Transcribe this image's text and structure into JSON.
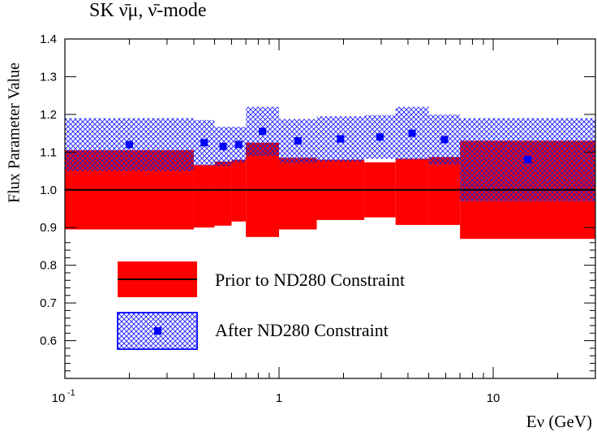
{
  "chart_data": {
    "type": "area",
    "title": "SK ν̄μ, ν̄-mode",
    "ylabel": "Flux Parameter Value",
    "xlabel": "Eν (GeV)",
    "x_scale": "log",
    "xlim": [
      0.1,
      30
    ],
    "ylim": [
      0.5,
      1.4
    ],
    "y_ticks": [
      "0.6",
      "0.7",
      "0.8",
      "0.9",
      "1.0",
      "1.1",
      "1.2",
      "1.3",
      "1.4"
    ],
    "x_ticks": [
      {
        "value": 0.1,
        "label": "10",
        "exp": "-1"
      },
      {
        "value": 1,
        "label": "1",
        "exp": ""
      },
      {
        "value": 10,
        "label": "10",
        "exp": ""
      }
    ],
    "reference_line": 1.0,
    "legend": [
      {
        "name": "Prior to ND280 Constraint",
        "style": "solid-red-band-with-line"
      },
      {
        "name": "After ND280 Constraint",
        "style": "blue-crosshatch-band-with-marker"
      }
    ],
    "series": [
      {
        "name": "Prior to ND280 Constraint",
        "bins": [
          {
            "x_low": 0.1,
            "x_high": 0.4,
            "center": 1.0,
            "error": 0.105
          },
          {
            "x_low": 0.4,
            "x_high": 0.5,
            "center": 0.983,
            "error": 0.083
          },
          {
            "x_low": 0.5,
            "x_high": 0.6,
            "center": 0.99,
            "error": 0.085
          },
          {
            "x_low": 0.6,
            "x_high": 0.7,
            "center": 0.998,
            "error": 0.082
          },
          {
            "x_low": 0.7,
            "x_high": 1.0,
            "center": 1.0,
            "error": 0.125
          },
          {
            "x_low": 1.0,
            "x_high": 1.5,
            "center": 0.99,
            "error": 0.095
          },
          {
            "x_low": 1.5,
            "x_high": 2.5,
            "center": 1.0,
            "error": 0.08
          },
          {
            "x_low": 2.5,
            "x_high": 3.5,
            "center": 1.0,
            "error": 0.073
          },
          {
            "x_low": 3.5,
            "x_high": 5.0,
            "center": 0.995,
            "error": 0.088
          },
          {
            "x_low": 5.0,
            "x_high": 7.0,
            "center": 0.997,
            "error": 0.09
          },
          {
            "x_low": 7.0,
            "x_high": 30.0,
            "center": 1.0,
            "error": 0.13
          }
        ]
      },
      {
        "name": "After ND280 Constraint",
        "bins": [
          {
            "x_low": 0.1,
            "x_high": 0.4,
            "center": 1.12,
            "error": 0.07
          },
          {
            "x_low": 0.4,
            "x_high": 0.5,
            "center": 1.125,
            "error": 0.06
          },
          {
            "x_low": 0.5,
            "x_high": 0.6,
            "center": 1.115,
            "error": 0.052
          },
          {
            "x_low": 0.6,
            "x_high": 0.7,
            "center": 1.12,
            "error": 0.047
          },
          {
            "x_low": 0.7,
            "x_high": 1.0,
            "center": 1.155,
            "error": 0.065
          },
          {
            "x_low": 1.0,
            "x_high": 1.5,
            "center": 1.13,
            "error": 0.058
          },
          {
            "x_low": 1.5,
            "x_high": 2.5,
            "center": 1.135,
            "error": 0.06
          },
          {
            "x_low": 2.5,
            "x_high": 3.5,
            "center": 1.14,
            "error": 0.058
          },
          {
            "x_low": 3.5,
            "x_high": 5.0,
            "center": 1.15,
            "error": 0.07
          },
          {
            "x_low": 5.0,
            "x_high": 7.0,
            "center": 1.133,
            "error": 0.066
          },
          {
            "x_low": 7.0,
            "x_high": 30.0,
            "center": 1.08,
            "error": 0.11
          }
        ]
      }
    ],
    "colors": {
      "prior_fill": "#ff0000",
      "post_hatch": "#1a1aff",
      "marker": "#0000ff",
      "overlap_fill": "#990055"
    }
  }
}
